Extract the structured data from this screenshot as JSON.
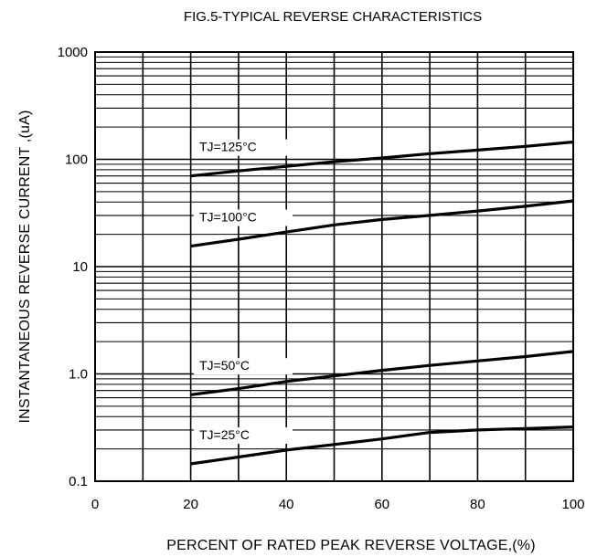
{
  "chart_data": {
    "type": "line",
    "title": "FIG.5-TYPICAL REVERSE CHARACTERISTICS",
    "xlabel": "PERCENT OF RATED PEAK REVERSE VOLTAGE,(%)",
    "ylabel": "INSTANTANEOUS  REVERSE  CURRENT ,(uA)",
    "x_scale": "linear",
    "y_scale": "log",
    "xlim": [
      0,
      100
    ],
    "ylim": [
      0.1,
      1000
    ],
    "grid": true,
    "x_ticks": [
      0,
      10,
      20,
      30,
      40,
      50,
      60,
      70,
      80,
      90,
      100
    ],
    "x_tick_labels": [
      "0",
      "20",
      "40",
      "60",
      "80",
      "100"
    ],
    "y_tick_labels": [
      "1000",
      "100",
      "10",
      "1.0",
      "0.1"
    ],
    "x": [
      20,
      30,
      40,
      50,
      60,
      70,
      80,
      90,
      100
    ],
    "series": [
      {
        "name": "TJ=125°C",
        "values": [
          70,
          78,
          86,
          95,
          103,
          113,
          122,
          132,
          145
        ]
      },
      {
        "name": "TJ=100°C",
        "values": [
          15.5,
          18,
          21,
          24.5,
          27.5,
          30,
          33,
          36.5,
          41
        ]
      },
      {
        "name": "TJ=50°C",
        "values": [
          0.64,
          0.73,
          0.85,
          0.96,
          1.08,
          1.2,
          1.32,
          1.45,
          1.62
        ]
      },
      {
        "name": "TJ=25°C",
        "values": [
          0.145,
          0.168,
          0.195,
          0.22,
          0.248,
          0.285,
          0.3,
          0.31,
          0.32
        ]
      }
    ],
    "line_color": "#000000",
    "grid_color": "#000000"
  }
}
